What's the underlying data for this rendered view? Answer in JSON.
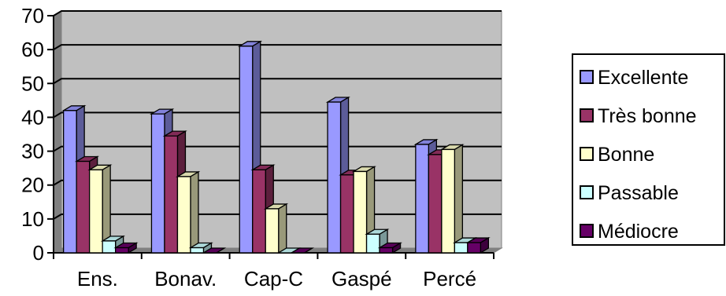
{
  "chart_data": {
    "type": "bar",
    "style": "3d-clustered",
    "categories": [
      "Ens.",
      "Bonav.",
      "Cap-C",
      "Gaspé",
      "Percé"
    ],
    "series": [
      {
        "name": "Excellente",
        "color": "#9999ff",
        "values": [
          42,
          41,
          61,
          44.5,
          32
        ]
      },
      {
        "name": "Très bonne",
        "color": "#993366",
        "values": [
          27,
          34.5,
          24.5,
          23,
          29
        ]
      },
      {
        "name": "Bonne",
        "color": "#ffffcc",
        "values": [
          24.5,
          22.5,
          13,
          24,
          30.5
        ]
      },
      {
        "name": "Passable",
        "color": "#ccffff",
        "values": [
          3.5,
          1.5,
          0,
          5.5,
          3
        ]
      },
      {
        "name": "Médiocre",
        "color": "#660066",
        "values": [
          1.5,
          0,
          0,
          1.5,
          3
        ]
      }
    ],
    "yticks": [
      0,
      10,
      20,
      30,
      40,
      50,
      60,
      70
    ],
    "ylim": [
      0,
      70
    ],
    "grid": true,
    "legend_position": "right",
    "plot_background": "#c0c0c0"
  }
}
